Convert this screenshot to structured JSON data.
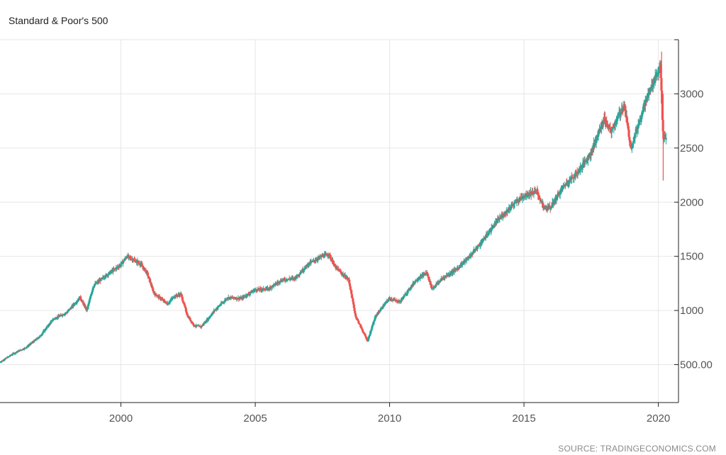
{
  "chart_data": {
    "type": "candlestick",
    "title": "Standard & Poor's 500",
    "source": "SOURCE: TRADINGECONOMICS.COM",
    "xlim": [
      1995.5,
      2020.75
    ],
    "ylim": [
      150,
      3500
    ],
    "y_ticks": [
      {
        "value": 500,
        "label": "500.00"
      },
      {
        "value": 1000,
        "label": "1000"
      },
      {
        "value": 1500,
        "label": "1500"
      },
      {
        "value": 2000,
        "label": "2000"
      },
      {
        "value": 2500,
        "label": "2500"
      },
      {
        "value": 3000,
        "label": "3000"
      }
    ],
    "x_ticks": [
      {
        "value": 2000,
        "label": "2000"
      },
      {
        "value": 2005,
        "label": "2005"
      },
      {
        "value": 2010,
        "label": "2010"
      },
      {
        "value": 2015,
        "label": "2015"
      },
      {
        "value": 2020,
        "label": "2020"
      }
    ],
    "grid": true,
    "colors": {
      "up": "#26a69a",
      "down": "#ef5350",
      "grid": "#e6e6e6",
      "axis": "#222222"
    },
    "anchors": [
      [
        1995.5,
        520
      ],
      [
        1996.0,
        600
      ],
      [
        1996.5,
        660
      ],
      [
        1997.0,
        760
      ],
      [
        1997.5,
        920
      ],
      [
        1998.0,
        980
      ],
      [
        1998.5,
        1120
      ],
      [
        1998.75,
        1000
      ],
      [
        1999.0,
        1230
      ],
      [
        1999.5,
        1330
      ],
      [
        2000.0,
        1420
      ],
      [
        2000.25,
        1500
      ],
      [
        2000.75,
        1430
      ],
      [
        2001.0,
        1340
      ],
      [
        2001.25,
        1160
      ],
      [
        2001.75,
        1060
      ],
      [
        2002.0,
        1130
      ],
      [
        2002.25,
        1150
      ],
      [
        2002.5,
        950
      ],
      [
        2002.75,
        860
      ],
      [
        2003.0,
        850
      ],
      [
        2003.25,
        920
      ],
      [
        2003.5,
        1000
      ],
      [
        2004.0,
        1120
      ],
      [
        2004.5,
        1110
      ],
      [
        2005.0,
        1190
      ],
      [
        2005.5,
        1200
      ],
      [
        2006.0,
        1280
      ],
      [
        2006.5,
        1300
      ],
      [
        2007.0,
        1430
      ],
      [
        2007.5,
        1500
      ],
      [
        2007.75,
        1520
      ],
      [
        2008.0,
        1400
      ],
      [
        2008.5,
        1280
      ],
      [
        2008.75,
        950
      ],
      [
        2009.0,
        820
      ],
      [
        2009.2,
        720
      ],
      [
        2009.5,
        950
      ],
      [
        2010.0,
        1110
      ],
      [
        2010.4,
        1080
      ],
      [
        2011.0,
        1280
      ],
      [
        2011.4,
        1350
      ],
      [
        2011.6,
        1200
      ],
      [
        2012.0,
        1300
      ],
      [
        2012.5,
        1380
      ],
      [
        2013.0,
        1500
      ],
      [
        2013.5,
        1650
      ],
      [
        2014.0,
        1820
      ],
      [
        2014.5,
        1950
      ],
      [
        2015.0,
        2060
      ],
      [
        2015.5,
        2100
      ],
      [
        2015.75,
        1950
      ],
      [
        2016.0,
        1950
      ],
      [
        2016.5,
        2150
      ],
      [
        2017.0,
        2270
      ],
      [
        2017.5,
        2450
      ],
      [
        2018.0,
        2770
      ],
      [
        2018.25,
        2650
      ],
      [
        2018.75,
        2900
      ],
      [
        2019.0,
        2500
      ],
      [
        2019.5,
        2900
      ],
      [
        2019.9,
        3150
      ],
      [
        2020.1,
        3250
      ],
      [
        2020.2,
        2600
      ],
      [
        2020.3,
        2580
      ]
    ]
  }
}
